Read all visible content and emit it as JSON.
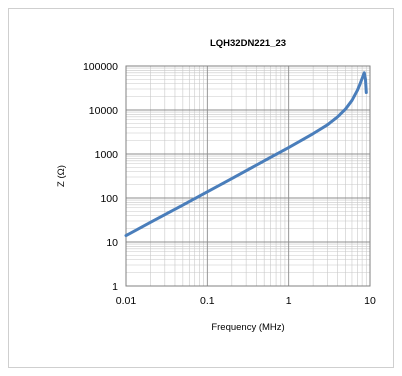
{
  "chart_data": {
    "type": "line",
    "title": "LQH32DN221_23",
    "xlabel": "Frequency (MHz)",
    "ylabel": "Z (Ω)",
    "xscale": "log",
    "yscale": "log",
    "xlim": [
      0.01,
      10
    ],
    "ylim": [
      1,
      100000
    ],
    "xticks": [
      "0.01",
      "0.1",
      "1",
      "10"
    ],
    "yticks": [
      "1",
      "10",
      "100",
      "1000",
      "10000",
      "100000"
    ],
    "grid": true,
    "legend": "none",
    "series_color": "#4a7ebb",
    "series": [
      {
        "x": [
          0.01,
          0.02,
          0.05,
          0.1,
          0.2,
          0.5,
          1,
          2,
          3,
          4,
          5,
          6,
          7,
          7.5,
          8,
          8.5,
          8.8,
          9
        ],
        "y": [
          14,
          28,
          69,
          138,
          276,
          700,
          1400,
          2900,
          4600,
          7000,
          10500,
          16500,
          28000,
          38000,
          52000,
          70000,
          50000,
          25000
        ]
      }
    ]
  }
}
